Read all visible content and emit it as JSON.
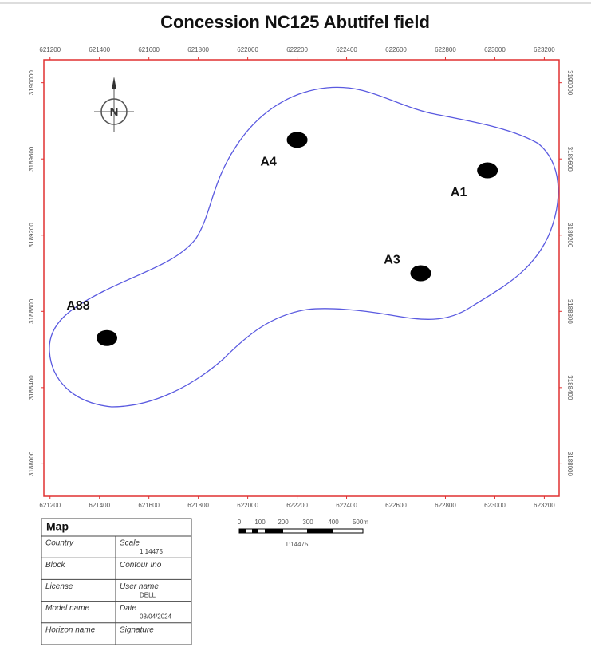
{
  "title": "Concession NC125 Abutifel  field",
  "map": {
    "xlim": [
      621175,
      623260
    ],
    "ylim": [
      3187830,
      3190120
    ],
    "xticks": [
      621200,
      621400,
      621600,
      621800,
      622000,
      622200,
      622400,
      622600,
      622800,
      623000,
      623200
    ],
    "yticks": [
      3188000,
      3188400,
      3188800,
      3189200,
      3189600,
      3190000
    ],
    "north_label": "N",
    "wells": [
      {
        "name": "A4",
        "x": 622200,
        "y": 3189700
      },
      {
        "name": "A1",
        "x": 622970,
        "y": 3189540
      },
      {
        "name": "A3",
        "x": 622700,
        "y": 3189000
      },
      {
        "name": "A88",
        "x": 621430,
        "y": 3188660
      }
    ]
  },
  "scale_bar": {
    "labels": [
      "0",
      "100",
      "200",
      "300",
      "400",
      "500m"
    ],
    "ratio": "1:14475"
  },
  "info_table": {
    "title": "Map",
    "rows": [
      {
        "left": "Country",
        "right": "Scale",
        "value": "1:14475"
      },
      {
        "left": "Block",
        "right": "Contour Ino"
      },
      {
        "left": "License",
        "right": "User name",
        "value": "DELL"
      },
      {
        "left": "Model name",
        "right": "Date",
        "value": "03/04/2024"
      },
      {
        "left": "Horizon name",
        "right": "Signature"
      }
    ]
  }
}
